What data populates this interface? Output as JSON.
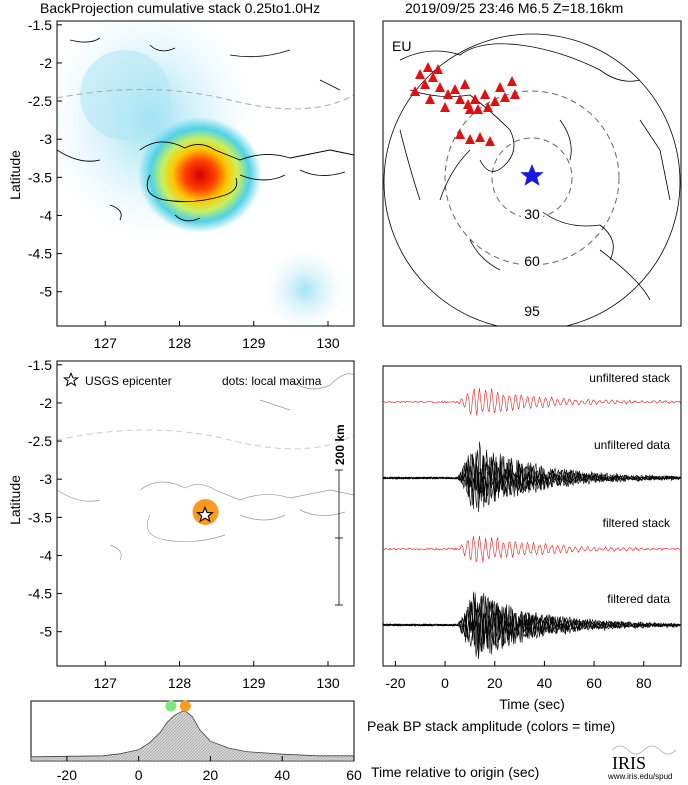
{
  "header": {
    "left_title": "BackProjection cumulative stack 0.25to1.0Hz",
    "right_title": "2019/09/25 23:46  M6.5  Z=18.16km"
  },
  "map_top": {
    "ylabel": "Latitude",
    "xticks": [
      "127",
      "128",
      "129",
      "130"
    ],
    "yticks": [
      "-1.5",
      "-2",
      "-2.5",
      "-3",
      "-3.5",
      "-4",
      "-4.5",
      "-5"
    ],
    "xlim": [
      126.35,
      130.35
    ],
    "ylim": [
      -5.45,
      -1.45
    ],
    "epicenter": {
      "lon": 128.35,
      "lat": -3.43
    }
  },
  "map_bottom": {
    "ylabel": "Latitude",
    "xticks": [
      "127",
      "128",
      "129",
      "130"
    ],
    "yticks": [
      "-1.5",
      "-2",
      "-2.5",
      "-3",
      "-3.5",
      "-4",
      "-4.5",
      "-5"
    ],
    "legend_star": "USGS epicenter",
    "legend_dots": "dots: local maxima",
    "scale_label": "200 km",
    "maxima": [
      {
        "lon": 128.35,
        "lat": -3.43,
        "color": "#ff9a1e"
      }
    ]
  },
  "globe": {
    "label": "EU",
    "distance_labels": [
      "30",
      "60",
      "95"
    ]
  },
  "traces": {
    "labels": [
      "unfiltered stack",
      "unfiltered data",
      "filtered stack",
      "filtered data"
    ],
    "xlabel": "Time (sec)",
    "xticks": [
      "-20",
      "0",
      "20",
      "40",
      "60",
      "80"
    ],
    "xlim": [
      -25,
      95
    ]
  },
  "peak": {
    "title": "Peak BP stack amplitude (colors = time)",
    "xlabel": "Time relative to origin (sec)",
    "xticks": [
      "-20",
      "0",
      "20",
      "40",
      "60"
    ],
    "xlim": [
      -30,
      60
    ],
    "dots": [
      {
        "t": 9,
        "color": "#7ee87e"
      },
      {
        "t": 13,
        "color": "#ff9a1e"
      }
    ]
  },
  "logo": {
    "name": "IRIS",
    "url": "www.iris.edu/spud"
  },
  "chart_data": [
    {
      "type": "heatmap",
      "title": "BackProjection cumulative stack 0.25to1.0Hz",
      "ylabel": "Latitude",
      "xlim": [
        126.35,
        130.35
      ],
      "ylim": [
        -5.45,
        -1.45
      ],
      "peak": {
        "lon": 128.35,
        "lat": -3.43
      }
    },
    {
      "type": "area",
      "title": "Peak BP stack amplitude (colors = time)",
      "xlabel": "Time relative to origin (sec)",
      "xlim": [
        -30,
        60
      ],
      "x": [
        -30,
        -20,
        -10,
        -5,
        0,
        3,
        6,
        8,
        10,
        12,
        13,
        15,
        17,
        20,
        25,
        30,
        40,
        50,
        60
      ],
      "y": [
        0.08,
        0.09,
        0.1,
        0.14,
        0.22,
        0.35,
        0.55,
        0.75,
        0.88,
        0.95,
        0.96,
        0.85,
        0.6,
        0.38,
        0.25,
        0.18,
        0.13,
        0.1,
        0.1
      ]
    }
  ]
}
